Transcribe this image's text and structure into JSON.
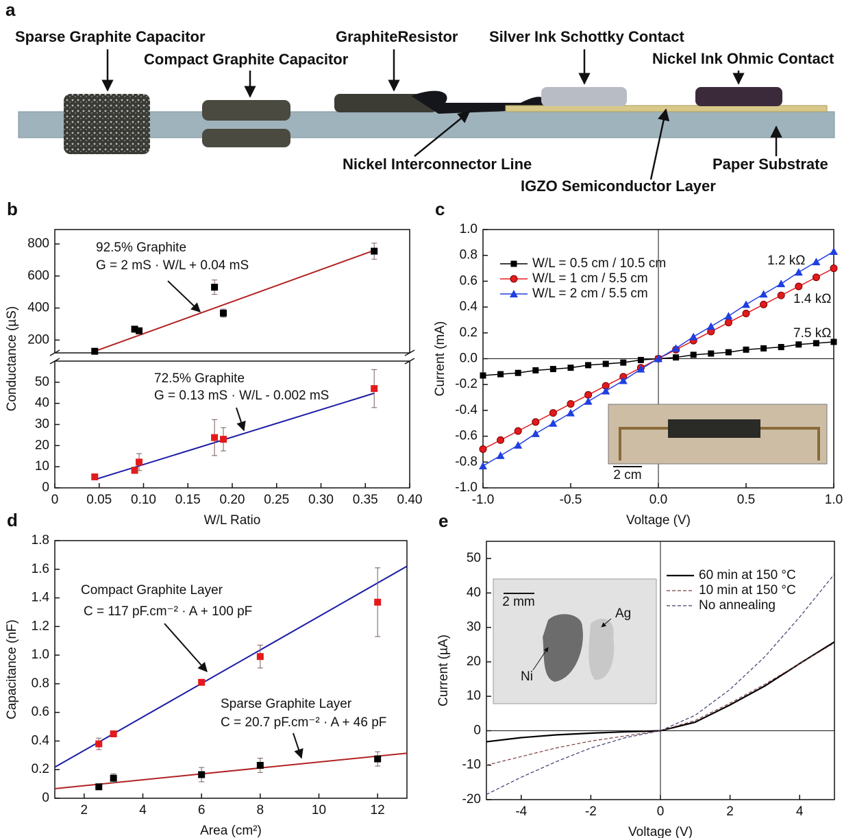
{
  "diagram": {
    "panel_label": "a",
    "labels": [
      "Sparse Graphite Capacitor",
      "Compact Graphite Capacitor",
      "GraphiteResistor",
      "Silver Ink Schottky Contact",
      "Nickel Ink Ohmic Contact",
      "Nickel Interconnector Line",
      "Paper Substrate",
      "IGZO Semiconductor Layer"
    ]
  },
  "chart_data": [
    {
      "type": "scatter",
      "panel_label": "b",
      "xlabel": "W/L Ratio",
      "ylabel": "Conductance (µS)",
      "xlim": [
        0,
        0.4
      ],
      "xticks": [
        0,
        0.05,
        {
          "value": 0.1,
          "label": "0.10"
        },
        0.15,
        {
          "value": 0.2,
          "label": "0.20"
        },
        0.25,
        {
          "value": 0.3,
          "label": "0.30"
        },
        0.35,
        {
          "value": 0.4,
          "label": "0.40"
        }
      ],
      "ylim": [
        0,
        60
      ],
      "yticks": [
        0,
        10,
        20,
        30,
        40,
        50
      ],
      "ylim_upper": [
        120,
        890
      ],
      "yticks_upper": [
        200,
        400,
        600,
        800
      ],
      "broken_axis": true,
      "series": [
        {
          "name": "92.5% Graphite",
          "annotation": "G = 2 mS · W/L + 0.04 mS",
          "axis": "upper",
          "color": "#000000",
          "fit_color": "#b22222",
          "x": [
            0.045,
            0.09,
            0.095,
            0.18,
            0.19,
            0.36
          ],
          "values": [
            130,
            268,
            258,
            530,
            368,
            755
          ],
          "errors": [
            12,
            15,
            10,
            45,
            25,
            50
          ],
          "fit_x": [
            0.045,
            0.36
          ],
          "fit_y": [
            130,
            760
          ]
        },
        {
          "name": "72.5% Graphite",
          "annotation": "G = 0.13 mS · W/L - 0.002 mS",
          "axis": "lower",
          "color": "#e31a1c",
          "fit_color": "#1a1aa6",
          "x": [
            0.045,
            0.09,
            0.095,
            0.18,
            0.19,
            0.36
          ],
          "values": [
            5.2,
            8.3,
            12.2,
            23.8,
            23,
            47
          ],
          "errors": [
            1,
            1.5,
            4,
            8.5,
            5.5,
            9
          ],
          "fit_x": [
            0.045,
            0.36
          ],
          "fit_y": [
            3.9,
            44.8
          ]
        }
      ]
    },
    {
      "type": "line",
      "panel_label": "c",
      "xlabel": "Voltage (V)",
      "ylabel": "Current (mA)",
      "xlim": [
        -1,
        1
      ],
      "xticks": [
        {
          "value": -1,
          "label": "-1.0"
        },
        -0.5,
        {
          "value": 0,
          "label": "0.0"
        },
        0.5,
        {
          "value": 1,
          "label": "1.0"
        }
      ],
      "ylim": [
        -1,
        1
      ],
      "yticks": [
        {
          "value": -1,
          "label": "-1.0"
        },
        -0.8,
        -0.6,
        -0.4,
        -0.2,
        {
          "value": 0,
          "label": "0.0"
        },
        0.2,
        0.4,
        0.6,
        0.8,
        {
          "value": 1,
          "label": "1.0"
        }
      ],
      "legend": "upper left",
      "inset_scale_label": "2 cm",
      "x": [
        -1,
        -0.9,
        -0.8,
        -0.7,
        -0.6,
        -0.5,
        -0.4,
        -0.3,
        -0.2,
        -0.1,
        0,
        0.1,
        0.2,
        0.3,
        0.4,
        0.5,
        0.6,
        0.7,
        0.8,
        0.9,
        1
      ],
      "series": [
        {
          "name": "W/L = 0.5 cm / 10.5 cm",
          "marker": "square",
          "color": "#000000",
          "resistance_label": "7.5 kΩ",
          "values": [
            -0.13,
            -0.12,
            -0.11,
            -0.09,
            -0.08,
            -0.07,
            -0.05,
            -0.04,
            -0.03,
            -0.01,
            0,
            0.01,
            0.03,
            0.04,
            0.05,
            0.07,
            0.08,
            0.09,
            0.11,
            0.12,
            0.13
          ]
        },
        {
          "name": "W/L = 1 cm / 5.5 cm",
          "marker": "circle",
          "color": "#e31a1c",
          "resistance_label": "1.4 kΩ",
          "values": [
            -0.7,
            -0.63,
            -0.56,
            -0.49,
            -0.42,
            -0.35,
            -0.28,
            -0.21,
            -0.14,
            -0.07,
            0,
            0.07,
            0.14,
            0.21,
            0.28,
            0.35,
            0.42,
            0.49,
            0.56,
            0.63,
            0.7
          ]
        },
        {
          "name": "W/L = 2 cm / 5.5 cm",
          "marker": "triangle",
          "color": "#1f3fe0",
          "resistance_label": "1.2 kΩ",
          "values": [
            -0.83,
            -0.75,
            -0.67,
            -0.58,
            -0.5,
            -0.42,
            -0.33,
            -0.25,
            -0.17,
            -0.08,
            0,
            0.08,
            0.17,
            0.25,
            0.33,
            0.42,
            0.5,
            0.58,
            0.67,
            0.75,
            0.83
          ]
        }
      ]
    },
    {
      "type": "scatter",
      "panel_label": "d",
      "xlabel": "Area (cm²)",
      "ylabel": "Capacitance (nF)",
      "xlim": [
        1,
        13
      ],
      "xticks": [
        2,
        4,
        6,
        8,
        10,
        12
      ],
      "ylim": [
        0,
        1.8
      ],
      "yticks": [
        0,
        0.2,
        0.4,
        0.6,
        0.8,
        {
          "value": 1,
          "label": "1.0"
        },
        1.2,
        1.4,
        1.6,
        1.8
      ],
      "series": [
        {
          "name": "Compact Graphite Layer",
          "annotation": "C = 117 pF.cm⁻² · A + 100 pF",
          "color": "#e31a1c",
          "fit_color": "#1a1aa6",
          "x": [
            2.5,
            3,
            6,
            8,
            12
          ],
          "values": [
            0.38,
            0.45,
            0.81,
            0.99,
            1.37
          ],
          "errors": [
            0.04,
            0.01,
            0.01,
            0.08,
            0.24
          ],
          "fit_x": [
            1,
            13
          ],
          "fit_y": [
            0.217,
            1.621
          ]
        },
        {
          "name": "Sparse Graphite Layer",
          "annotation": "C = 20.7 pF.cm⁻² · A + 46 pF",
          "color": "#000000",
          "fit_color": "#b22222",
          "x": [
            2.5,
            3,
            6,
            8,
            12
          ],
          "values": [
            0.08,
            0.14,
            0.165,
            0.23,
            0.275
          ],
          "errors": [
            0.01,
            0.03,
            0.05,
            0.05,
            0.05
          ],
          "fit_x": [
            1,
            13
          ],
          "fit_y": [
            0.067,
            0.315
          ]
        }
      ]
    },
    {
      "type": "line",
      "panel_label": "e",
      "xlabel": "Voltage (V)",
      "ylabel": "Current  (µA)",
      "xlim": [
        -5,
        5
      ],
      "xticks": [
        -4,
        -2,
        0,
        2,
        4
      ],
      "ylim": [
        -20,
        55
      ],
      "yticks": [
        -20,
        -10,
        0,
        10,
        20,
        30,
        40,
        50
      ],
      "legend": "upper right",
      "inset_scale_label": "2 mm",
      "inset_labels": [
        "Ag",
        "Ni"
      ],
      "x": [
        -5,
        -4,
        -3,
        -2,
        -1,
        0,
        1,
        2,
        3,
        4,
        5
      ],
      "series": [
        {
          "name": "60 min at 150 °C",
          "dash": "solid",
          "color": "#000000",
          "values": [
            -3.2,
            -2,
            -1.2,
            -0.7,
            -0.3,
            0,
            2.5,
            7.5,
            13,
            19.5,
            25.8
          ]
        },
        {
          "name": "10 min at 150 °C",
          "dash": "dashed",
          "color": "#7a3b3b",
          "values": [
            -10,
            -7.5,
            -5,
            -3,
            -1.5,
            0,
            3,
            8,
            13.5,
            19.5,
            25.5
          ]
        },
        {
          "name": "No annealing",
          "dash": "dashed",
          "color": "#3b3b6e",
          "values": [
            -18.5,
            -13.5,
            -9,
            -5,
            -2,
            0,
            4.5,
            12,
            21.5,
            33,
            45.5
          ]
        }
      ]
    }
  ]
}
